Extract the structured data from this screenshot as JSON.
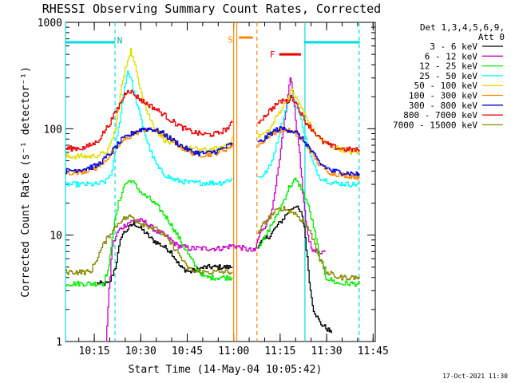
{
  "chart_data": {
    "type": "line",
    "title": "RHESSI Observing Summary Count Rates, Corrected",
    "xlabel": "Start Time (14-May-04 10:05:42)",
    "ylabel": "Corrected Count Rate (s⁻¹ detector⁻¹)",
    "footer": "17-Oct-2021 11:30",
    "y_scale": "log",
    "ylim": [
      1,
      1000
    ],
    "xlim_minutes": [
      0,
      100
    ],
    "x_ticks": [
      {
        "label": "10:15",
        "minutes": 9.3
      },
      {
        "label": "10:30",
        "minutes": 24.3
      },
      {
        "label": "10:45",
        "minutes": 39.3
      },
      {
        "label": "11:00",
        "minutes": 54.3
      },
      {
        "label": "11:15",
        "minutes": 69.3
      },
      {
        "label": "11:30",
        "minutes": 84.3
      },
      {
        "label": "11:45",
        "minutes": 99.3
      }
    ],
    "y_ticks": [
      {
        "label": "1",
        "value": 1
      },
      {
        "label": "10",
        "value": 10
      },
      {
        "label": "100",
        "value": 100
      },
      {
        "label": "1000",
        "value": 1000
      }
    ],
    "legend": {
      "header_line1": "Det 1,3,4,5,6,9,",
      "header_line2": "Att 0",
      "placement": "right"
    },
    "gap": [
      54.3,
      62.0
    ],
    "series": [
      {
        "name": "3 - 6 keV",
        "color": "#000000",
        "points": [
          [
            10,
            3.5
          ],
          [
            14,
            3.5
          ],
          [
            16,
            5
          ],
          [
            18,
            10
          ],
          [
            22,
            13
          ],
          [
            25,
            11
          ],
          [
            28,
            9
          ],
          [
            31,
            8
          ],
          [
            34,
            7
          ],
          [
            37,
            5
          ],
          [
            40,
            4.5
          ],
          [
            45,
            5
          ],
          [
            50,
            5
          ],
          [
            54,
            5
          ],
          [
            62,
            8
          ],
          [
            64,
            9
          ],
          [
            66,
            10
          ],
          [
            68,
            12
          ],
          [
            70,
            14
          ],
          [
            72,
            17
          ],
          [
            74,
            19
          ],
          [
            76,
            16
          ],
          [
            77,
            12
          ],
          [
            78,
            6
          ],
          [
            79,
            3
          ],
          [
            80,
            2
          ],
          [
            82,
            1.5
          ],
          [
            86,
            1.2
          ]
        ]
      },
      {
        "name": "6 - 12 keV",
        "color": "#cc00cc",
        "points": [
          [
            13,
            1
          ],
          [
            14,
            3
          ],
          [
            15,
            8
          ],
          [
            17,
            11
          ],
          [
            20,
            13
          ],
          [
            23,
            14
          ],
          [
            26,
            13
          ],
          [
            29,
            11
          ],
          [
            32,
            10
          ],
          [
            36,
            8
          ],
          [
            40,
            7.5
          ],
          [
            45,
            7.5
          ],
          [
            50,
            7.5
          ],
          [
            54,
            8
          ],
          [
            61,
            7
          ],
          [
            62,
            9
          ],
          [
            63,
            11
          ],
          [
            65,
            13
          ],
          [
            67,
            20
          ],
          [
            69,
            50
          ],
          [
            71,
            150
          ],
          [
            72.5,
            300
          ],
          [
            73.5,
            200
          ],
          [
            74.5,
            100
          ],
          [
            75.5,
            60
          ],
          [
            76.5,
            25
          ],
          [
            77.5,
            13
          ],
          [
            78.5,
            9
          ],
          [
            80,
            7
          ],
          [
            84,
            7
          ]
        ]
      },
      {
        "name": "12 - 25 keV",
        "color": "#00ee00",
        "points": [
          [
            0,
            3.5
          ],
          [
            10,
            3.5
          ],
          [
            12,
            3.5
          ],
          [
            14,
            5
          ],
          [
            15,
            10
          ],
          [
            17,
            20
          ],
          [
            19,
            30
          ],
          [
            21,
            33
          ],
          [
            23,
            28
          ],
          [
            25,
            24
          ],
          [
            27,
            22
          ],
          [
            30,
            18
          ],
          [
            33,
            14
          ],
          [
            36,
            10
          ],
          [
            39,
            7
          ],
          [
            42,
            5
          ],
          [
            45,
            4
          ],
          [
            50,
            4
          ],
          [
            54,
            4
          ],
          [
            62,
            8
          ],
          [
            64,
            9
          ],
          [
            66,
            12
          ],
          [
            68,
            15
          ],
          [
            70,
            20
          ],
          [
            72,
            28
          ],
          [
            74,
            33
          ],
          [
            76,
            28
          ],
          [
            78,
            20
          ],
          [
            80,
            12
          ],
          [
            82,
            6
          ],
          [
            84,
            4
          ],
          [
            88,
            3.5
          ],
          [
            95,
            3.5
          ]
        ]
      },
      {
        "name": "25 - 50 keV",
        "color": "#00ffff",
        "points": [
          [
            0,
            30
          ],
          [
            10,
            30
          ],
          [
            13,
            32
          ],
          [
            15,
            40
          ],
          [
            17,
            100
          ],
          [
            19,
            250
          ],
          [
            20,
            350
          ],
          [
            21,
            300
          ],
          [
            22,
            220
          ],
          [
            24,
            130
          ],
          [
            26,
            80
          ],
          [
            28,
            55
          ],
          [
            30,
            42
          ],
          [
            32,
            37
          ],
          [
            35,
            33
          ],
          [
            40,
            31
          ],
          [
            45,
            31
          ],
          [
            50,
            31
          ],
          [
            54,
            34
          ],
          [
            62,
            35
          ],
          [
            64,
            37
          ],
          [
            66,
            45
          ],
          [
            68,
            70
          ],
          [
            70,
            120
          ],
          [
            72,
            190
          ],
          [
            73,
            200
          ],
          [
            74,
            180
          ],
          [
            76,
            120
          ],
          [
            78,
            70
          ],
          [
            80,
            45
          ],
          [
            82,
            35
          ],
          [
            86,
            31
          ],
          [
            92,
            30
          ],
          [
            95,
            30
          ]
        ]
      },
      {
        "name": "50 - 100 keV",
        "color": "#dddd00",
        "points": [
          [
            0,
            55
          ],
          [
            8,
            55
          ],
          [
            12,
            58
          ],
          [
            14,
            65
          ],
          [
            16,
            100
          ],
          [
            18,
            250
          ],
          [
            20,
            450
          ],
          [
            21,
            550
          ],
          [
            22,
            420
          ],
          [
            24,
            250
          ],
          [
            26,
            150
          ],
          [
            28,
            110
          ],
          [
            30,
            90
          ],
          [
            32,
            78
          ],
          [
            35,
            70
          ],
          [
            40,
            65
          ],
          [
            45,
            63
          ],
          [
            50,
            65
          ],
          [
            53,
            75
          ],
          [
            54,
            85
          ],
          [
            62,
            85
          ],
          [
            64,
            90
          ],
          [
            66,
            100
          ],
          [
            68,
            130
          ],
          [
            70,
            160
          ],
          [
            72,
            200
          ],
          [
            73,
            230
          ],
          [
            74,
            200
          ],
          [
            76,
            160
          ],
          [
            78,
            120
          ],
          [
            80,
            95
          ],
          [
            82,
            80
          ],
          [
            86,
            68
          ],
          [
            92,
            60
          ],
          [
            95,
            60
          ]
        ]
      },
      {
        "name": "100 - 300 keV",
        "color": "#ff8800",
        "points": [
          [
            0,
            38
          ],
          [
            6,
            40
          ],
          [
            10,
            43
          ],
          [
            14,
            55
          ],
          [
            18,
            75
          ],
          [
            22,
            90
          ],
          [
            25,
            98
          ],
          [
            28,
            97
          ],
          [
            31,
            90
          ],
          [
            34,
            78
          ],
          [
            37,
            68
          ],
          [
            40,
            60
          ],
          [
            43,
            57
          ],
          [
            46,
            57
          ],
          [
            49,
            60
          ],
          [
            52,
            65
          ],
          [
            54,
            70
          ],
          [
            62,
            70
          ],
          [
            64,
            78
          ],
          [
            66,
            88
          ],
          [
            68,
            95
          ],
          [
            70,
            98
          ],
          [
            72,
            96
          ],
          [
            74,
            90
          ],
          [
            76,
            80
          ],
          [
            78,
            68
          ],
          [
            80,
            55
          ],
          [
            82,
            45
          ],
          [
            86,
            38
          ],
          [
            92,
            36
          ],
          [
            95,
            35
          ]
        ]
      },
      {
        "name": "300 - 800 keV",
        "color": "#0000dd",
        "points": [
          [
            0,
            40
          ],
          [
            6,
            42
          ],
          [
            10,
            45
          ],
          [
            14,
            57
          ],
          [
            18,
            78
          ],
          [
            22,
            93
          ],
          [
            25,
            100
          ],
          [
            28,
            99
          ],
          [
            31,
            92
          ],
          [
            34,
            80
          ],
          [
            37,
            70
          ],
          [
            40,
            62
          ],
          [
            43,
            59
          ],
          [
            46,
            59
          ],
          [
            49,
            62
          ],
          [
            52,
            68
          ],
          [
            54,
            73
          ],
          [
            62,
            73
          ],
          [
            64,
            80
          ],
          [
            66,
            90
          ],
          [
            68,
            98
          ],
          [
            70,
            100
          ],
          [
            72,
            98
          ],
          [
            74,
            93
          ],
          [
            76,
            82
          ],
          [
            78,
            70
          ],
          [
            80,
            57
          ],
          [
            82,
            47
          ],
          [
            86,
            40
          ],
          [
            92,
            38
          ],
          [
            95,
            37
          ]
        ]
      },
      {
        "name": "800 - 7000 keV",
        "color": "#ee0000",
        "points": [
          [
            0,
            65
          ],
          [
            6,
            66
          ],
          [
            10,
            75
          ],
          [
            14,
            110
          ],
          [
            17,
            160
          ],
          [
            19,
            210
          ],
          [
            20,
            235
          ],
          [
            22,
            210
          ],
          [
            25,
            180
          ],
          [
            28,
            160
          ],
          [
            31,
            140
          ],
          [
            34,
            120
          ],
          [
            37,
            105
          ],
          [
            40,
            95
          ],
          [
            43,
            90
          ],
          [
            46,
            88
          ],
          [
            49,
            90
          ],
          [
            52,
            100
          ],
          [
            54,
            115
          ],
          [
            62,
            115
          ],
          [
            64,
            130
          ],
          [
            66,
            150
          ],
          [
            68,
            170
          ],
          [
            70,
            185
          ],
          [
            71.5,
            180
          ],
          [
            73,
            200
          ],
          [
            75,
            160
          ],
          [
            77,
            120
          ],
          [
            80,
            95
          ],
          [
            83,
            75
          ],
          [
            86,
            68
          ],
          [
            90,
            64
          ],
          [
            95,
            63
          ]
        ]
      },
      {
        "name": "7000 - 15000 keV",
        "color": "#888800",
        "points": [
          [
            0,
            4.5
          ],
          [
            8,
            4.5
          ],
          [
            10,
            6
          ],
          [
            12,
            8
          ],
          [
            14,
            10
          ],
          [
            16,
            12
          ],
          [
            18,
            14
          ],
          [
            21,
            15
          ],
          [
            24,
            13
          ],
          [
            27,
            12
          ],
          [
            30,
            11
          ],
          [
            33,
            9
          ],
          [
            36,
            7
          ],
          [
            39,
            5
          ],
          [
            42,
            4.5
          ],
          [
            45,
            4.5
          ],
          [
            50,
            4.5
          ],
          [
            54,
            4.5
          ],
          [
            62,
            10
          ],
          [
            64,
            13
          ],
          [
            66,
            15
          ],
          [
            68,
            17
          ],
          [
            70,
            18
          ],
          [
            72,
            17
          ],
          [
            74,
            16
          ],
          [
            76,
            14
          ],
          [
            78,
            12
          ],
          [
            80,
            9
          ],
          [
            82,
            6
          ],
          [
            84,
            4.5
          ],
          [
            88,
            4
          ],
          [
            95,
            4
          ]
        ]
      }
    ],
    "saa_flags": [
      {
        "x_start": 0,
        "x_end": 16,
        "value": 650,
        "color": "#00dddd"
      },
      {
        "x_start": 77,
        "x_end": 95,
        "value": 650,
        "color": "#00dddd"
      }
    ],
    "markers": [
      {
        "label": "N",
        "x": 17.5,
        "value": 680,
        "color": "#00aaaa"
      },
      {
        "label": "S",
        "x": 53.2,
        "value": 690,
        "color": "#ff8800"
      },
      {
        "label": "F",
        "x": 66.8,
        "value": 500,
        "color": "#ee0000"
      }
    ],
    "marker_bars": [
      {
        "x_start": 56,
        "x_end": 60.5,
        "value": 720,
        "color": "#ff8800"
      },
      {
        "x_start": 69,
        "x_end": 76,
        "value": 500,
        "color": "#ee0000"
      }
    ],
    "vlines": [
      {
        "x": 0,
        "style": "solid",
        "color": "#00dddd"
      },
      {
        "x": 16,
        "style": "dashed",
        "color": "#00dddd"
      },
      {
        "x": 77.3,
        "style": "solid",
        "color": "#00dddd"
      },
      {
        "x": 94.8,
        "style": "dashed",
        "color": "#00dddd"
      },
      {
        "x": 54.3,
        "style": "solid",
        "color": "#ff8800"
      },
      {
        "x": 55.3,
        "style": "solid",
        "color": "#ff8800"
      },
      {
        "x": 61.8,
        "style": "dashed",
        "color": "#ff8800"
      }
    ]
  }
}
